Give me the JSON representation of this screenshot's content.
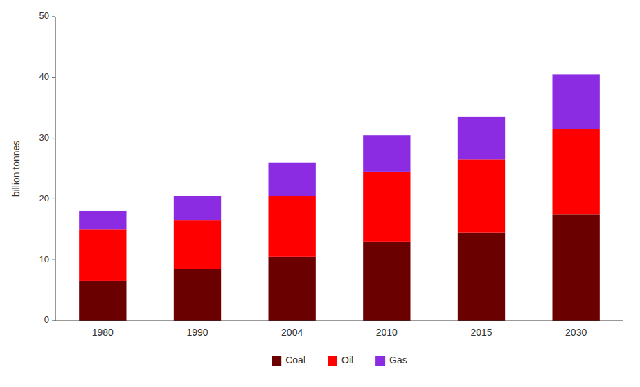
{
  "chart_data": {
    "type": "bar",
    "stacked": true,
    "ylabel": "billion tonnes",
    "categories": [
      "1980",
      "1990",
      "2004",
      "2010",
      "2015",
      "2030"
    ],
    "series": [
      {
        "name": "Coal",
        "color": "#6b0000",
        "values": [
          6.5,
          8.5,
          10.5,
          13.0,
          14.5,
          17.5
        ]
      },
      {
        "name": "Oil",
        "color": "#ff0000",
        "values": [
          8.5,
          8.0,
          10.0,
          11.5,
          12.0,
          14.0
        ]
      },
      {
        "name": "Gas",
        "color": "#8b2be2",
        "values": [
          3.0,
          4.0,
          5.5,
          6.0,
          7.0,
          9.0
        ]
      }
    ],
    "ylim": [
      0,
      50
    ],
    "yticks": [
      0,
      10,
      20,
      30,
      40,
      50
    ],
    "grid": false,
    "legend": "bottom"
  }
}
